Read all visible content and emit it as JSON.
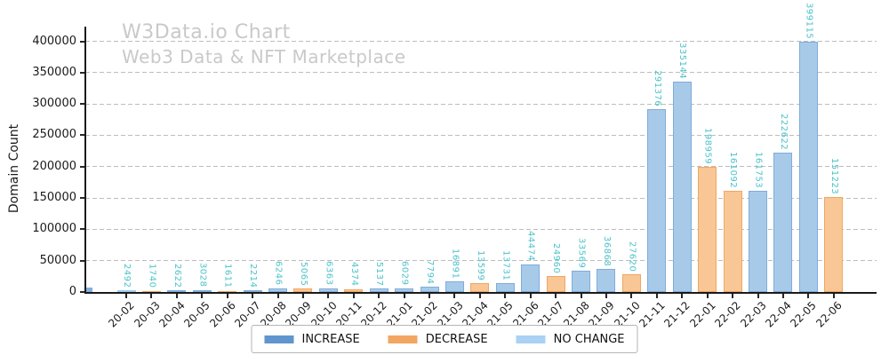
{
  "header": {
    "title": "W3Data.io Chart",
    "subtitle": "Web3 Data & NFT Marketplace"
  },
  "y_axis": {
    "label": "Domain Count",
    "ticks": [
      0,
      50000,
      100000,
      150000,
      200000,
      250000,
      300000,
      350000,
      400000
    ]
  },
  "legend": [
    {
      "label": "INCREASE",
      "color": "#6095ce"
    },
    {
      "label": "DECREASE",
      "color": "#f2a661"
    },
    {
      "label": "NO CHANGE",
      "color": "#a9d2f4"
    }
  ],
  "chart_data": {
    "type": "bar",
    "title": "W3Data.io Chart",
    "subtitle": "Web3 Data & NFT Marketplace",
    "xlabel": "",
    "ylabel": "Domain Count",
    "ylim": [
      0,
      430000
    ],
    "grid": "horizontal-dashed",
    "legend_position": "bottom-center",
    "categories": [
      "20-02",
      "20-03",
      "20-04",
      "20-05",
      "20-06",
      "20-07",
      "20-08",
      "20-09",
      "20-10",
      "20-11",
      "20-12",
      "21-01",
      "21-02",
      "21-03",
      "21-04",
      "21-05",
      "21-06",
      "21-07",
      "21-08",
      "21-09",
      "21-10",
      "21-11",
      "21-12",
      "22-01",
      "22-02",
      "22-03",
      "22-04",
      "22-05",
      "22-06"
    ],
    "values": [
      2492,
      1740,
      2622,
      3028,
      1611,
      2214,
      6246,
      5065,
      6363,
      4374,
      5137,
      6029,
      7794,
      16891,
      13599,
      13731,
      44474,
      24960,
      33569,
      36868,
      27620,
      291376,
      335144,
      198959,
      161092,
      161753,
      222622,
      399115,
      151223
    ],
    "changes": [
      "no_change",
      "decrease",
      "increase",
      "increase",
      "decrease",
      "increase",
      "increase",
      "decrease",
      "increase",
      "decrease",
      "increase",
      "increase",
      "increase",
      "increase",
      "decrease",
      "increase",
      "increase",
      "decrease",
      "increase",
      "increase",
      "decrease",
      "increase",
      "increase",
      "decrease",
      "decrease",
      "increase",
      "increase",
      "increase",
      "decrease"
    ],
    "bar_colors": {
      "increase": "#a8cae9",
      "decrease": "#f8c795",
      "no_change": "#badaf4"
    },
    "bar_edge_colors": {
      "increase": "#7facdb",
      "decrease": "#f0a763",
      "no_change": "#9ecbee"
    },
    "value_label_color": "#4bc2c9"
  }
}
